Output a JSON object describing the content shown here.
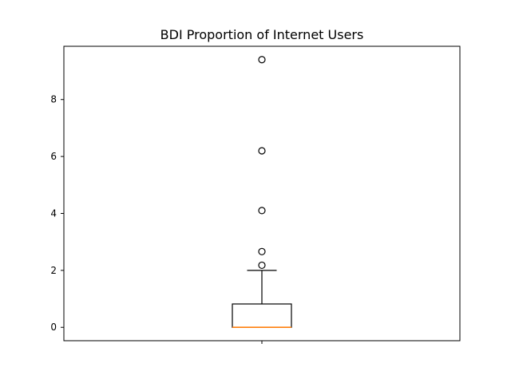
{
  "chart_data": {
    "type": "box",
    "title": "BDI Proportion of Internet Users",
    "xlabel": "",
    "ylabel": "",
    "ylim": [
      -0.47,
      9.87
    ],
    "yticks": [
      0,
      2,
      4,
      6,
      8
    ],
    "xtick_labels": [
      ""
    ],
    "grid": false,
    "legend": false,
    "box": {
      "median": 0.0,
      "q1": 0.0,
      "q3": 0.82,
      "whisker_low": 0.0,
      "whisker_high": 2.0,
      "outliers": [
        2.18,
        2.66,
        4.1,
        6.2,
        9.4
      ]
    },
    "colors": {
      "box": "#000000",
      "median": "#ff7f0e",
      "outlier_edge": "#000000"
    }
  }
}
